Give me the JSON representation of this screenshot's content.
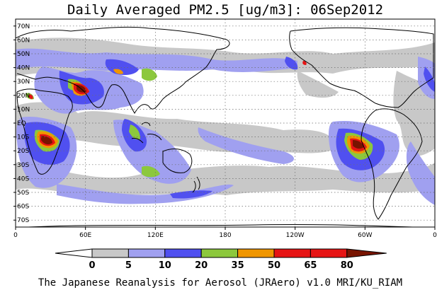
{
  "title": "Daily Averaged PM2.5 [ug/m3]: 06Sep2012",
  "credit": "The Japanese Reanalysis for Aerosol (JRAero) v1.0 MRI/KU_RIAM",
  "map": {
    "lon_range": [
      0,
      360
    ],
    "lat_range": [
      -75,
      75
    ],
    "grid": "dotted",
    "lat_labels": [
      "70N",
      "60N",
      "50N",
      "40N",
      "30N",
      "20N",
      "10N",
      "EQ",
      "10S",
      "20S",
      "30S",
      "40S",
      "50S",
      "60S",
      "70S"
    ],
    "lat_values": [
      70,
      60,
      50,
      40,
      30,
      20,
      10,
      0,
      -10,
      -20,
      -30,
      -40,
      -50,
      -60,
      -70
    ],
    "lon_labels": [
      "0",
      "60E",
      "120E",
      "180",
      "120W",
      "60W",
      "0"
    ],
    "lon_values": [
      0,
      60,
      120,
      180,
      240,
      300,
      360
    ]
  },
  "colorbar": {
    "labels": [
      "0",
      "5",
      "10",
      "20",
      "35",
      "50",
      "65",
      "80"
    ],
    "colors": [
      "#ffffff",
      "#c8c8c8",
      "#a0a0f0",
      "#5050f0",
      "#8cc83c",
      "#f09600",
      "#e61414",
      "#781400"
    ]
  }
}
